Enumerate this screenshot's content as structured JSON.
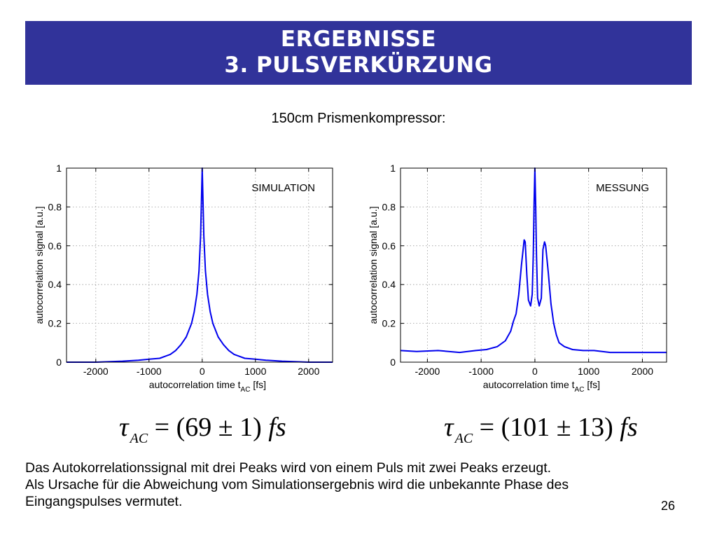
{
  "slide": {
    "title_line1": "ERGEBNISSE",
    "title_line2": "3. PULSVERKÜRZUNG",
    "subtitle": "150cm Prismenkompressor:",
    "formula_left": {
      "symbol": "τ",
      "sub": "AC",
      "rhs": "= (69 ± 1) ",
      "unit": "fs"
    },
    "formula_right": {
      "symbol": "τ",
      "sub": "AC",
      "rhs": "= (101 ± 13) ",
      "unit": "fs"
    },
    "text_line1": "Das Autokorrelationssignal mit drei Peaks wird von einem Puls mit zwei Peaks erzeugt.",
    "text_line2": "Als Ursache für die Abweichung vom Simulationsergebnis wird die unbekannte Phase des",
    "text_line3": "Eingangspulses vermutet.",
    "page_number": "26"
  },
  "colors": {
    "title_bg": "#31339a",
    "series": "#0000ee",
    "grid": "#999999"
  },
  "chart_data": [
    {
      "type": "line",
      "annotation": "SIMULATION",
      "xlabel": "autocorrelation time t",
      "xlabel_sub": "AC",
      "xlabel_unit": "[fs]",
      "ylabel": "autocorrelation signal [a.u.]",
      "xlim": [
        -2550,
        2450
      ],
      "ylim": [
        0,
        1
      ],
      "xticks": [
        -2000,
        -1000,
        0,
        1000,
        2000
      ],
      "yticks": [
        0,
        0.2,
        0.4,
        0.6,
        0.8,
        1
      ],
      "ytick_labels": [
        "0",
        "0.2",
        "0.4",
        "0.6",
        "0.8",
        "1"
      ],
      "grid": true,
      "series": [
        {
          "x": [
            -2550,
            -2000,
            -1500,
            -1200,
            -1000,
            -800,
            -600,
            -500,
            -400,
            -300,
            -200,
            -150,
            -100,
            -60,
            -30,
            -10,
            0,
            10,
            30,
            60,
            100,
            150,
            200,
            300,
            400,
            500,
            600,
            800,
            1000,
            1200,
            1500,
            2000,
            2450
          ],
          "y": [
            0.0,
            0.0,
            0.005,
            0.01,
            0.015,
            0.02,
            0.04,
            0.06,
            0.09,
            0.13,
            0.2,
            0.26,
            0.35,
            0.47,
            0.65,
            0.88,
            1.0,
            0.88,
            0.65,
            0.47,
            0.35,
            0.26,
            0.2,
            0.13,
            0.09,
            0.06,
            0.04,
            0.02,
            0.015,
            0.01,
            0.005,
            0.0,
            0.0
          ]
        }
      ]
    },
    {
      "type": "line",
      "annotation": "MESSUNG",
      "xlabel": "autocorrelation time t",
      "xlabel_sub": "AC",
      "xlabel_unit": "[fs]",
      "ylabel": "autocorrelation signal [a.u.]",
      "xlim": [
        -2500,
        2450
      ],
      "ylim": [
        0,
        1
      ],
      "xticks": [
        -2000,
        -1000,
        0,
        1000,
        2000
      ],
      "yticks": [
        0,
        0.2,
        0.4,
        0.6,
        0.8,
        1
      ],
      "ytick_labels": [
        "0",
        "0.2",
        "0.4",
        "0.6",
        "0.8",
        "1"
      ],
      "grid": true,
      "series": [
        {
          "x": [
            -2500,
            -2200,
            -1800,
            -1400,
            -1100,
            -900,
            -700,
            -550,
            -450,
            -400,
            -350,
            -300,
            -250,
            -200,
            -180,
            -150,
            -120,
            -80,
            -50,
            -30,
            -15,
            0,
            15,
            30,
            50,
            80,
            120,
            150,
            180,
            200,
            250,
            300,
            350,
            400,
            450,
            550,
            700,
            900,
            1100,
            1400,
            1800,
            2200,
            2450
          ],
          "y": [
            0.06,
            0.055,
            0.06,
            0.05,
            0.06,
            0.065,
            0.08,
            0.11,
            0.16,
            0.21,
            0.25,
            0.35,
            0.5,
            0.63,
            0.62,
            0.45,
            0.32,
            0.29,
            0.35,
            0.55,
            0.82,
            1.0,
            0.8,
            0.55,
            0.33,
            0.29,
            0.33,
            0.58,
            0.62,
            0.6,
            0.46,
            0.3,
            0.2,
            0.14,
            0.1,
            0.08,
            0.065,
            0.06,
            0.06,
            0.05,
            0.05,
            0.05,
            0.05
          ]
        }
      ]
    }
  ]
}
